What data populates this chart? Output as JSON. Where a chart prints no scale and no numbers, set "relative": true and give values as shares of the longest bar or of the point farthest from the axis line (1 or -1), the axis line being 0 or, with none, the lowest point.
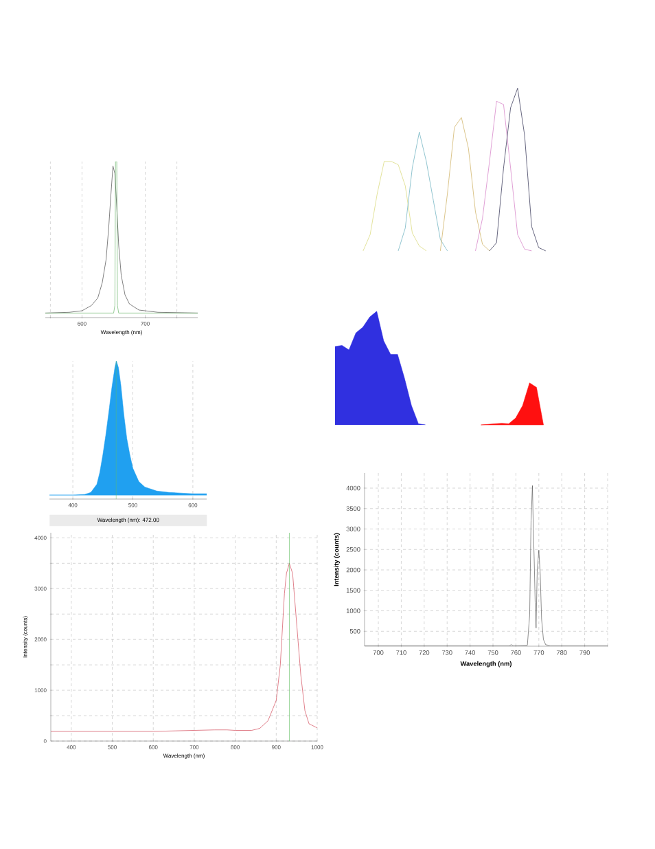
{
  "chart_data": [
    {
      "type": "line",
      "relative": true,
      "grid": true,
      "tick_labels": false,
      "categories": [
        null,
        null,
        null,
        null,
        null,
        null,
        null,
        null,
        null,
        null,
        null,
        null,
        null,
        null,
        null,
        null,
        null,
        null,
        null,
        null,
        null,
        null,
        null,
        null,
        null,
        null,
        null,
        null,
        null,
        null,
        null,
        null
      ],
      "series": [
        {
          "color": "#d4d46a",
          "values": [
            null,
            null,
            null,
            null,
            0,
            0.1,
            0.35,
            0.55,
            0.55,
            0.53,
            0.4,
            0.11,
            0.03,
            0,
            null,
            null,
            null,
            null,
            null,
            null,
            null,
            null,
            null,
            null,
            null,
            null,
            null,
            null,
            null,
            null,
            null,
            null
          ]
        },
        {
          "color": "#5aa8b8",
          "values": [
            null,
            null,
            null,
            null,
            null,
            null,
            null,
            null,
            null,
            0,
            0.14,
            0.51,
            0.73,
            0.55,
            0.31,
            0.07,
            0,
            null,
            null,
            null,
            null,
            null,
            null,
            null,
            null,
            null,
            null,
            null,
            null,
            null,
            null,
            null
          ]
        },
        {
          "color": "#c8a850",
          "values": [
            null,
            null,
            null,
            null,
            null,
            null,
            null,
            null,
            null,
            null,
            null,
            null,
            null,
            null,
            null,
            0,
            0.35,
            0.76,
            0.82,
            0.63,
            0.24,
            0.04,
            0,
            null,
            null,
            null,
            null,
            null,
            null,
            null,
            null,
            null
          ]
        },
        {
          "color": "#d070c0",
          "values": [
            null,
            null,
            null,
            null,
            null,
            null,
            null,
            null,
            null,
            null,
            null,
            null,
            null,
            null,
            null,
            null,
            null,
            null,
            null,
            null,
            0,
            0.2,
            0.55,
            0.92,
            0.9,
            0.51,
            0.1,
            0.01,
            0,
            null,
            null,
            null
          ]
        },
        {
          "color": "#1a1a40",
          "values": [
            null,
            null,
            null,
            null,
            null,
            null,
            null,
            null,
            null,
            null,
            null,
            null,
            null,
            null,
            null,
            null,
            null,
            null,
            null,
            null,
            null,
            null,
            0,
            0.05,
            0.51,
            0.88,
            1.0,
            0.71,
            0.15,
            0.02,
            0,
            null
          ]
        }
      ]
    },
    {
      "type": "line",
      "relative": true,
      "grid": true,
      "tick_labels": "x",
      "xlabel": "Wavelength (nm)",
      "xlim": [
        542,
        783
      ],
      "xticks": [
        {
          "value": 550,
          "label": null
        },
        600,
        700,
        {
          "value": 750,
          "label": null
        }
      ],
      "series": [
        {
          "color": "#404040",
          "x": [
            542,
            580,
            600,
            615,
            625,
            632,
            638,
            642,
            646,
            649,
            652,
            655,
            658,
            662,
            668,
            675,
            690,
            720,
            783
          ],
          "values": [
            0,
            0.005,
            0.015,
            0.05,
            0.1,
            0.2,
            0.35,
            0.55,
            0.8,
            0.97,
            0.92,
            0.7,
            0.45,
            0.25,
            0.12,
            0.06,
            0.02,
            0.005,
            0
          ]
        },
        {
          "color": "#60b060",
          "x": [
            542,
            650,
            652,
            653,
            655,
            656,
            658,
            783
          ],
          "values": [
            0,
            0,
            0.05,
            1,
            1,
            0.05,
            0,
            0
          ]
        }
      ]
    },
    {
      "type": "area",
      "relative": true,
      "grid": true,
      "tick_labels": false,
      "categories": [
        null,
        null,
        null,
        null,
        null,
        null,
        null,
        null,
        null,
        null,
        null,
        null,
        null,
        null,
        null,
        null,
        null,
        null,
        null,
        null,
        null,
        null,
        null,
        null,
        null,
        null,
        null,
        null,
        null,
        null,
        null,
        null,
        null,
        null,
        null
      ],
      "series": [
        {
          "color": "#3030e0",
          "values": [
            0.69,
            0.7,
            0.66,
            0.81,
            0.86,
            0.95,
            1.0,
            0.74,
            0.62,
            0.62,
            0.41,
            0.17,
            0.01,
            0,
            null,
            null,
            null,
            null,
            null,
            null,
            null,
            null,
            null,
            null,
            null,
            null,
            null,
            null,
            null,
            null,
            null,
            null,
            null,
            null,
            null
          ]
        },
        {
          "color": "#ff1010",
          "values": [
            null,
            null,
            null,
            null,
            null,
            null,
            null,
            null,
            null,
            null,
            null,
            null,
            null,
            null,
            null,
            null,
            null,
            null,
            null,
            null,
            null,
            0,
            0.005,
            0.01,
            0.014,
            0.01,
            0.06,
            0.17,
            0.37,
            0.33,
            0,
            null,
            null,
            null,
            null
          ]
        }
      ]
    },
    {
      "type": "area",
      "relative": true,
      "grid": true,
      "tick_labels": "x",
      "xlim": [
        361,
        623
      ],
      "xticks": [
        400,
        500,
        600
      ],
      "annotations": [
        "Wavelength (nm): 472.00"
      ],
      "ref_lines": [
        {
          "axis": "x",
          "value": 472,
          "color": "#60c060"
        }
      ],
      "series": [
        {
          "color": "#20a0f0",
          "x": [
            361,
            400,
            420,
            430,
            440,
            445,
            450,
            455,
            460,
            465,
            470,
            472.5,
            476,
            480,
            485,
            490,
            495,
            500,
            510,
            520,
            540,
            560,
            600,
            623
          ],
          "values": [
            0,
            0,
            0.005,
            0.02,
            0.08,
            0.17,
            0.3,
            0.45,
            0.62,
            0.8,
            0.95,
            1,
            0.95,
            0.82,
            0.6,
            0.42,
            0.3,
            0.2,
            0.1,
            0.06,
            0.03,
            0.02,
            0.01,
            0.01
          ]
        }
      ]
    },
    {
      "type": "line",
      "grid": true,
      "xlabel": "Wavelength (nm)",
      "ylabel": "Intensity (counts)",
      "xlim": [
        694,
        800
      ],
      "ylim": [
        135,
        4370
      ],
      "xticks": [
        700,
        710,
        720,
        730,
        740,
        750,
        760,
        770,
        780,
        790,
        {
          "value": 800,
          "label": null
        }
      ],
      "yticks": [
        500,
        1000,
        1500,
        2000,
        2500,
        3000,
        3500,
        4000
      ],
      "series": [
        {
          "color": "#555555",
          "x": [
            694,
            740,
            757,
            758,
            759,
            765,
            766,
            766.6,
            767.2,
            767.6,
            768,
            768.4,
            768.8,
            769.3,
            770,
            770.6,
            771.2,
            772,
            773,
            775,
            800
          ],
          "values": [
            150,
            150,
            150,
            170,
            150,
            160,
            900,
            3200,
            4060,
            3000,
            2200,
            1200,
            580,
            2000,
            2480,
            1900,
            800,
            300,
            170,
            150,
            150
          ]
        }
      ]
    },
    {
      "type": "line",
      "grid": true,
      "xlabel": "Wavelength (nm)",
      "ylabel": "Intensity (counts)",
      "xlim": [
        350,
        1000
      ],
      "ylim": [
        0,
        4100
      ],
      "xticks": [
        400,
        500,
        600,
        700,
        800,
        900,
        1000
      ],
      "yticks": [
        0,
        {
          "value": 500,
          "label": null
        },
        1000,
        {
          "value": 1500,
          "label": null
        },
        2000,
        {
          "value": 2500,
          "label": null
        },
        3000,
        {
          "value": 3500,
          "label": null
        },
        4000
      ],
      "ref_lines": [
        {
          "axis": "x",
          "value": 932,
          "color": "#60c060"
        }
      ],
      "series": [
        {
          "color": "#d04050",
          "x": [
            350,
            600,
            700,
            750,
            780,
            800,
            840,
            860,
            880,
            900,
            910,
            920,
            925,
            932,
            940,
            950,
            960,
            970,
            980,
            1000
          ],
          "values": [
            190,
            190,
            210,
            220,
            220,
            210,
            210,
            250,
            400,
            800,
            1500,
            2900,
            3300,
            3500,
            3300,
            2300,
            1300,
            600,
            340,
            260
          ]
        }
      ]
    }
  ]
}
